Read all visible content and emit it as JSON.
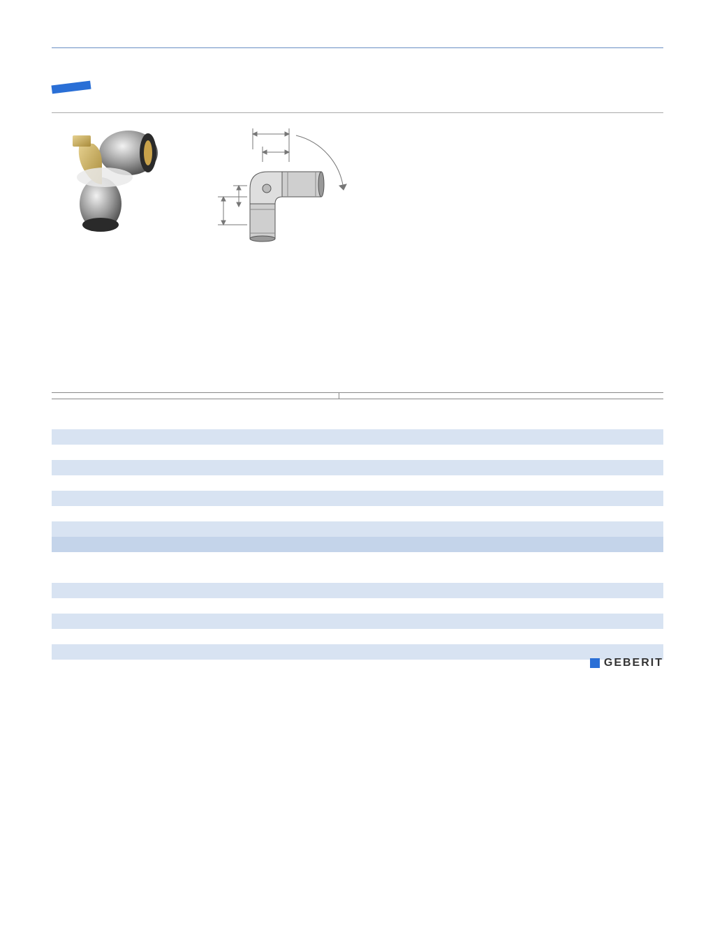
{
  "brand": "GEBERIT",
  "kv": {
    "left": "",
    "right": ""
  },
  "table": {
    "columns": [
      "",
      "",
      "",
      "",
      "",
      ""
    ],
    "rows": [
      {
        "shade": "row-shade",
        "cells": [
          "",
          "",
          "",
          "",
          "",
          ""
        ]
      },
      {
        "shade": "row-white",
        "cells": [
          "",
          "",
          "",
          "",
          "",
          ""
        ]
      },
      {
        "shade": "row-shade",
        "cells": [
          "",
          "",
          "",
          "",
          "",
          ""
        ]
      },
      {
        "shade": "row-white",
        "cells": [
          "",
          "",
          "",
          "",
          "",
          ""
        ]
      },
      {
        "shade": "row-shade",
        "cells": [
          "",
          "",
          "",
          "",
          "",
          ""
        ]
      },
      {
        "shade": "row-white",
        "cells": [
          "",
          "",
          "",
          "",
          "",
          ""
        ]
      },
      {
        "shade": "row-shade",
        "cells": [
          "",
          "",
          "",
          "",
          "",
          ""
        ]
      },
      {
        "shade": "row-darker",
        "cells": [
          "",
          "",
          "",
          "",
          "",
          ""
        ]
      },
      {
        "shade": "row-white",
        "cells": [
          "",
          "",
          "",
          "",
          "",
          ""
        ]
      },
      {
        "shade": "row-white",
        "cells": [
          "",
          "",
          "",
          "",
          "",
          ""
        ]
      },
      {
        "shade": "row-shade",
        "cells": [
          "",
          "",
          "",
          "",
          "",
          ""
        ]
      },
      {
        "shade": "row-white",
        "cells": [
          "",
          "",
          "",
          "",
          "",
          ""
        ]
      },
      {
        "shade": "row-shade",
        "cells": [
          "",
          "",
          "",
          "",
          "",
          ""
        ]
      },
      {
        "shade": "row-white",
        "cells": [
          "",
          "",
          "",
          "",
          "",
          ""
        ]
      },
      {
        "shade": "row-shade",
        "cells": [
          "",
          "",
          "",
          "",
          "",
          ""
        ]
      },
      {
        "shade": "row-white",
        "cells": [
          "",
          "",
          "",
          "",
          "",
          ""
        ]
      }
    ]
  },
  "photo": {
    "body_color": "#d0b56a",
    "sleeve_color": "#8c8c8c",
    "highlight": "#e8e8e8",
    "dark": "#3a3a3a"
  },
  "diagram": {
    "stroke": "#888888",
    "fill": "#b8b8b8",
    "light": "#e0e0e0"
  }
}
